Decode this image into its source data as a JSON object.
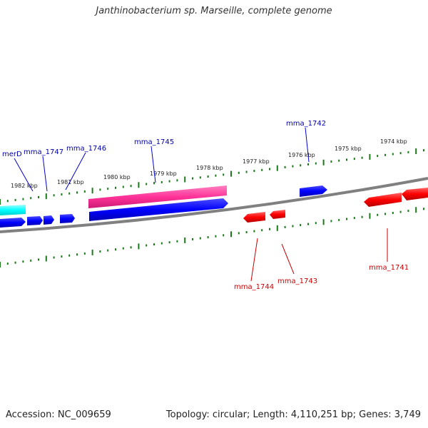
{
  "title": "Janthinobacterium sp. Marseille, complete genome",
  "footer": {
    "accession": "Accession: NC_009659",
    "summary": "Topology: circular; Length: 4,110,251 bp; Genes: 3,749"
  },
  "ruler_labels": [
    "1982 kbp",
    "1981 kbp",
    "1980 kbp",
    "1979 kbp",
    "1978 kbp",
    "1977 kbp",
    "1976 kbp",
    "1975 kbp",
    "1974 kbp"
  ],
  "genes_forward": [
    "merD",
    "mma_1747",
    "mma_1746",
    "mma_1745",
    "mma_1742"
  ],
  "genes_reverse": [
    "mma_1744",
    "mma_1743",
    "mma_1741"
  ],
  "colors": {
    "forward": "#0000ff",
    "reverse": "#ff0000",
    "pink": "#ff3399",
    "cyan": "#00ffff",
    "tick": "#1a7a1a",
    "backbone": "#808080"
  }
}
